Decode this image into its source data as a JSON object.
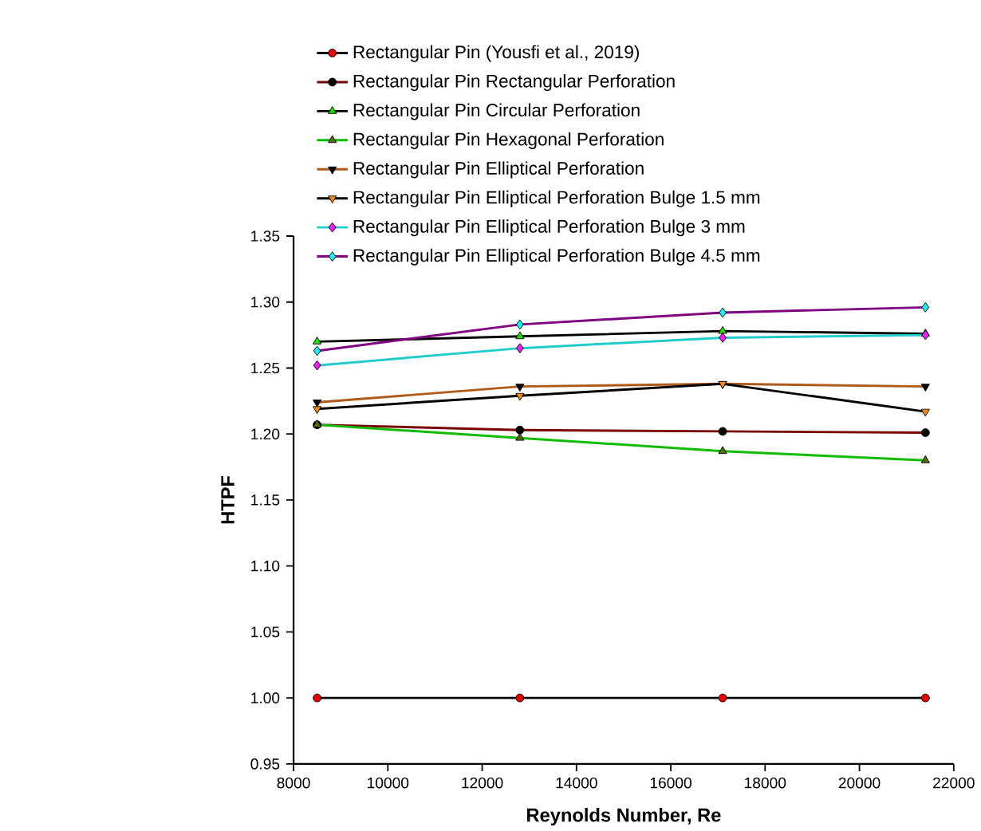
{
  "chart_data": {
    "type": "line",
    "xlabel": "Reynolds Number, Re",
    "ylabel": "HTPF",
    "x": [
      8500,
      12800,
      17100,
      21400
    ],
    "series": [
      {
        "name": "Rectangular Pin (Yousfi et al., 2019)",
        "color": "#000000",
        "colors": [
          "#e00000",
          "#e00000",
          "#e00000",
          "#e00000"
        ],
        "marker": "circle",
        "values": [
          1.0,
          1.0,
          1.0,
          1.0
        ]
      },
      {
        "name": "Rectangular Pin Rectangular Perforation",
        "color": "#7a0000",
        "colors": [
          "#000000",
          "#000000",
          "#000000",
          "#000000"
        ],
        "marker": "circle",
        "values": [
          1.207,
          1.203,
          1.202,
          1.201
        ]
      },
      {
        "name": "Rectangular Pin Circular Perforation",
        "color": "#000000",
        "colors": [
          "#22dd00",
          "#22dd00",
          "#22dd00",
          "#22dd00"
        ],
        "marker": "triangle",
        "values": [
          1.27,
          1.274,
          1.278,
          1.276
        ]
      },
      {
        "name": "Rectangular Pin Hexagonal Perforation",
        "color": "#11bb00",
        "colors": [
          "#556b00",
          "#556b00",
          "#556b00",
          "#556b00"
        ],
        "marker": "triangle",
        "values": [
          1.207,
          1.197,
          1.187,
          1.18
        ]
      },
      {
        "name": "Rectangular Pin Elliptical Perforation",
        "color": "#b05a1a",
        "colors": [
          "#000000",
          "#000000",
          "#000000",
          "#000000"
        ],
        "marker": "triangle-down",
        "values": [
          1.224,
          1.236,
          1.238,
          1.236
        ]
      },
      {
        "name": "Rectangular Pin Elliptical Perforation Bulge 1.5 mm",
        "color": "#000000",
        "colors": [
          "#f08a1a",
          "#f08a1a",
          "#f08a1a",
          "#f08a1a"
        ],
        "marker": "triangle-down",
        "values": [
          1.219,
          1.229,
          1.238,
          1.217
        ]
      },
      {
        "name": "Rectangular Pin Elliptical Perforation Bulge 3 mm",
        "color": "#22cccc",
        "colors": [
          "#ee22ee",
          "#ee22ee",
          "#ee22ee",
          "#ee22ee"
        ],
        "marker": "diamond",
        "values": [
          1.252,
          1.265,
          1.273,
          1.275
        ]
      },
      {
        "name": "Rectangular Pin Elliptical Perforation Bulge 4.5 mm",
        "color": "#800080",
        "colors": [
          "#22eeee",
          "#22eeee",
          "#22eeee",
          "#22eeee"
        ],
        "marker": "diamond",
        "values": [
          1.263,
          1.283,
          1.292,
          1.296
        ]
      }
    ],
    "xlim": [
      8000,
      22000
    ],
    "xticks": [
      8000,
      10000,
      12000,
      14000,
      16000,
      18000,
      20000,
      22000
    ],
    "ylim": [
      0.95,
      1.35
    ],
    "yticks": [
      {
        "value": 0.95,
        "label": "0.95"
      },
      {
        "value": 1.0,
        "label": "1.00"
      },
      {
        "value": 1.05,
        "label": "1.05"
      },
      {
        "value": 1.1,
        "label": "1.10"
      },
      {
        "value": 1.15,
        "label": "1.15"
      },
      {
        "value": 1.2,
        "label": "1.20"
      },
      {
        "value": 1.25,
        "label": "1.25"
      },
      {
        "value": 1.3,
        "label": "1.30"
      },
      {
        "value": 1.35,
        "label": "1.35"
      }
    ],
    "legend": "top",
    "grid": false,
    "line_style": "solid"
  }
}
